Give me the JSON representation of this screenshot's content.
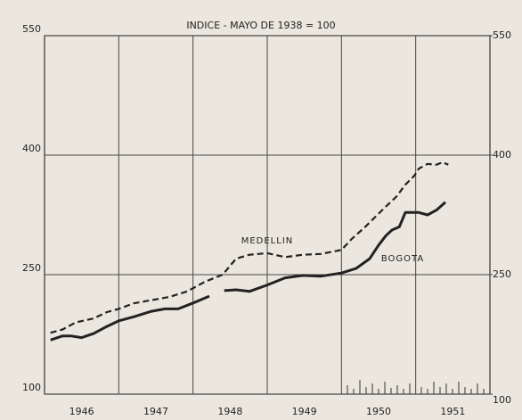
{
  "chart_data": {
    "type": "line",
    "title": "INDICE - MAYO DE 1938 = 100",
    "xlim": [
      1946,
      1952
    ],
    "xticks": [
      {
        "value": 1946.5,
        "label": "1946"
      },
      {
        "value": 1947.5,
        "label": "1947"
      },
      {
        "value": 1948.5,
        "label": "1948"
      },
      {
        "value": 1949.5,
        "label": "1949"
      },
      {
        "value": 1950.5,
        "label": "1950"
      },
      {
        "value": 1951.5,
        "label": "1951"
      }
    ],
    "xgrid": [
      1947,
      1948,
      1949,
      1950,
      1951
    ],
    "ylim": [
      100,
      550
    ],
    "yticks": [
      100,
      250,
      400,
      550
    ],
    "y2lim": [
      100,
      550
    ],
    "y2ticks": [
      100,
      250,
      400,
      550
    ],
    "grid": true,
    "series": [
      {
        "name": "BOGOTA",
        "color": "#222222",
        "dashed": false,
        "x": [
          1946.08,
          1946.24,
          1946.36,
          1946.5,
          1946.66,
          1946.84,
          1947.0,
          1947.2,
          1947.44,
          1947.62,
          1947.8,
          1947.99,
          1948.22,
          1948.32,
          1948.42,
          1948.58,
          1948.76,
          1949.0,
          1949.24,
          1949.48,
          1949.72,
          1950.0,
          1950.2,
          1950.38,
          1950.5,
          1950.6,
          1950.68,
          1950.78,
          1950.86,
          1951.04,
          1951.16,
          1951.28,
          1951.4
        ],
        "values": [
          168,
          173,
          173,
          171,
          176,
          185,
          192,
          197,
          204,
          207,
          207,
          214,
          223,
          null,
          230,
          231,
          229,
          237,
          246,
          249,
          248,
          252,
          258,
          270,
          287,
          299,
          306,
          310,
          328,
          328,
          325,
          331,
          341
        ]
      },
      {
        "name": "MEDELLIN",
        "color": "#222222",
        "dashed": true,
        "x": [
          1946.08,
          1946.24,
          1946.42,
          1946.66,
          1946.84,
          1947.0,
          1947.2,
          1947.44,
          1947.68,
          1947.92,
          1948.16,
          1948.4,
          1948.58,
          1948.76,
          1949.0,
          1949.24,
          1949.48,
          1949.72,
          1950.0,
          1950.14,
          1950.32,
          1950.56,
          1950.74,
          1950.86,
          1950.98,
          1951.04,
          1951.16,
          1951.28,
          1951.36,
          1951.44
        ],
        "values": [
          177,
          181,
          190,
          195,
          203,
          207,
          214,
          218,
          222,
          229,
          241,
          250,
          270,
          275,
          277,
          272,
          275,
          276,
          281,
          295,
          310,
          332,
          348,
          363,
          374,
          383,
          389,
          388,
          391,
          388
        ]
      }
    ]
  }
}
